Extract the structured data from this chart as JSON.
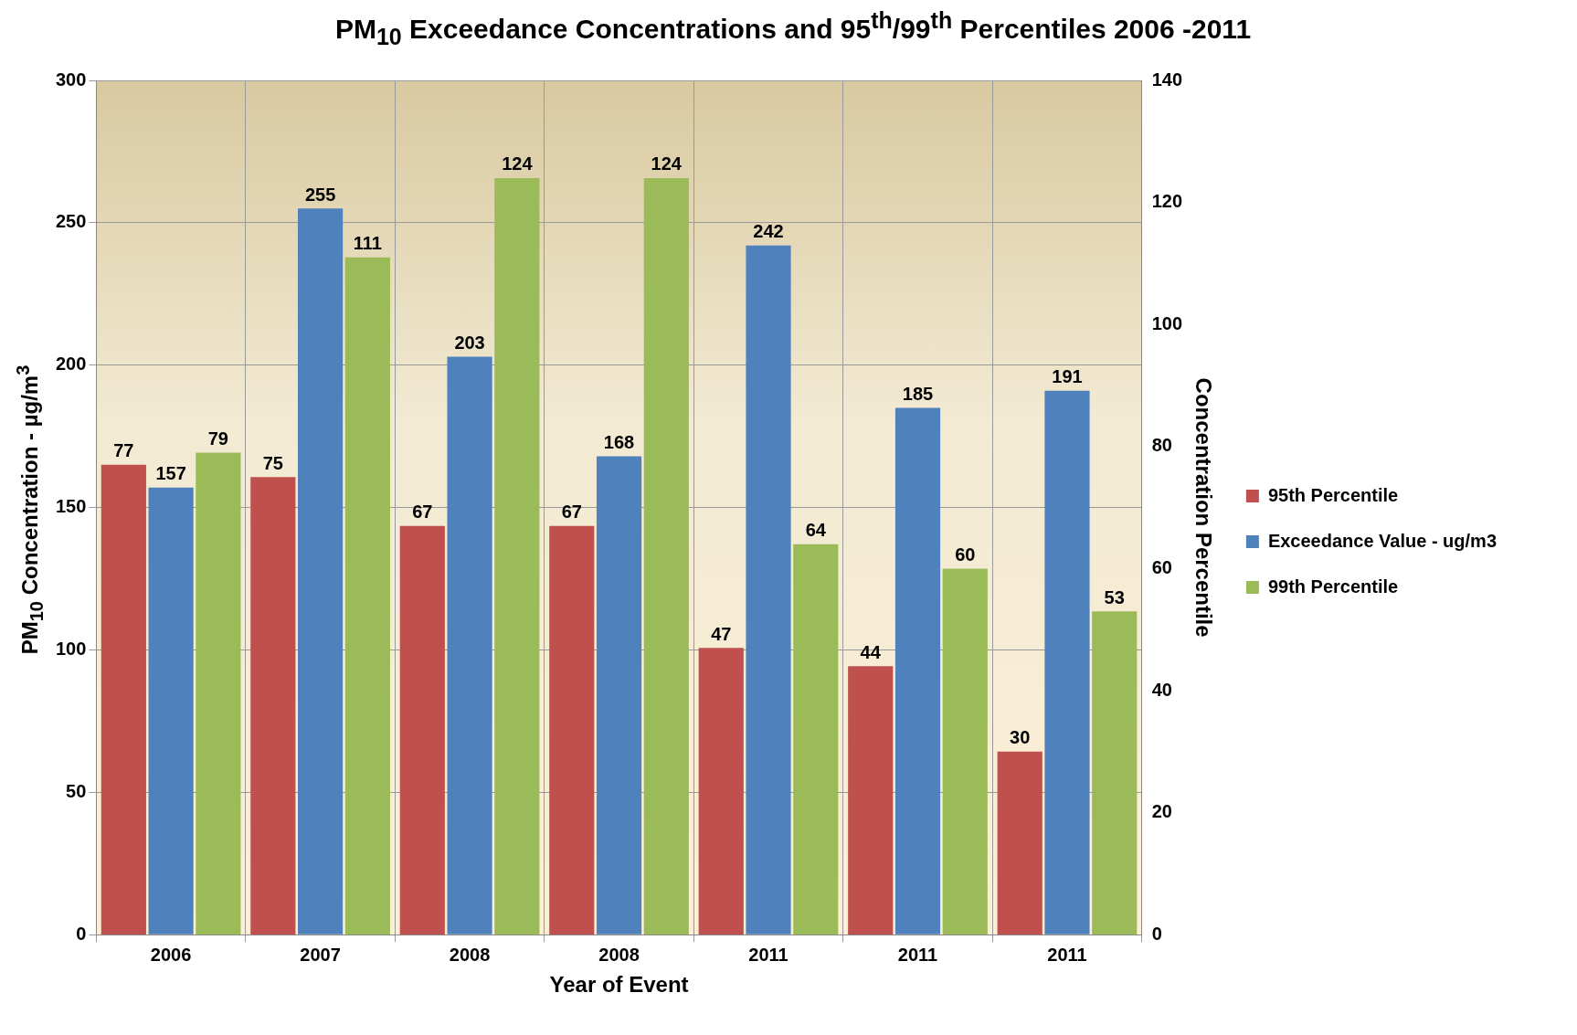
{
  "chart_data": {
    "type": "bar",
    "title": "PM$_{10}$ Exceedance Concentrations and 95$^{th}$/99$^{th}$ Percentiles 2006 -2011",
    "xlabel": "Year of Event",
    "ylabel": "PM$_{10}$ Concentration - µg/m$^{3}$",
    "y2label": "Concentration Percentile",
    "categories": [
      "2006",
      "2007",
      "2008",
      "2008",
      "2011",
      "2011",
      "2011"
    ],
    "series": [
      {
        "name": "95th Percentile",
        "color": "#c0504d",
        "axis": "y2",
        "values": [
          77,
          75,
          67,
          67,
          47,
          44,
          30
        ]
      },
      {
        "name": "Exceedance Value - ug/m3",
        "color": "#4f81bd",
        "values": [
          157,
          255,
          203,
          168,
          242,
          185,
          191
        ]
      },
      {
        "name": "99th Percentile",
        "color": "#9bbb59",
        "axis": "y2",
        "values": [
          79,
          111,
          124,
          124,
          64,
          60,
          53
        ]
      }
    ],
    "ylim": [
      0,
      300
    ],
    "yticks": [
      0,
      50,
      100,
      150,
      200,
      250,
      300
    ],
    "y2lim": [
      0,
      140
    ],
    "y2ticks": [
      0,
      20,
      40,
      60,
      80,
      100,
      120,
      140
    ],
    "grid": true,
    "legend": "right",
    "data_labels": true
  }
}
